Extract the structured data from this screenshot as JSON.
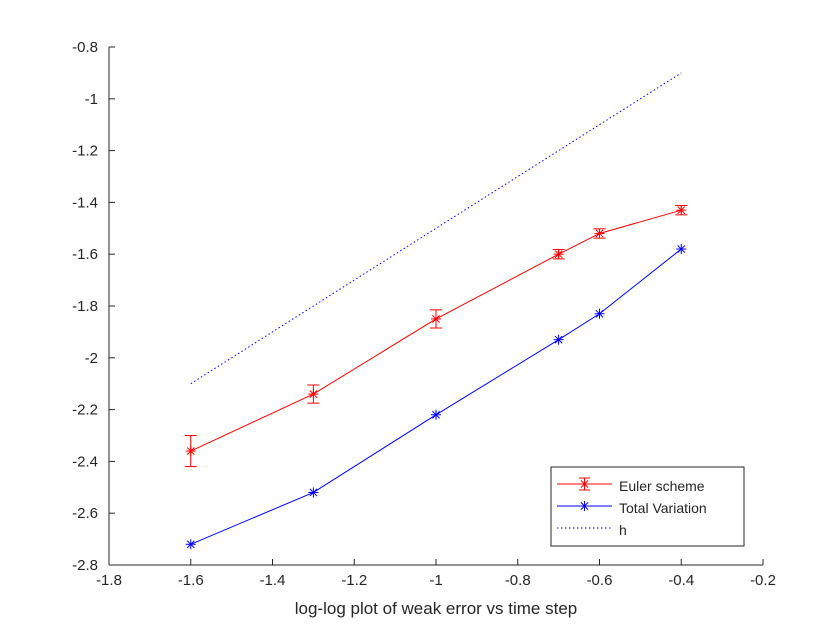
{
  "chart_data": {
    "type": "line",
    "title": "",
    "xlabel": "log-log plot of weak error vs time step",
    "ylabel": "",
    "xlim": [
      -1.8,
      -0.2
    ],
    "ylim": [
      -2.8,
      -0.8
    ],
    "xticks": [
      -1.8,
      -1.6,
      -1.4,
      -1.2,
      -1,
      -0.8,
      -0.6,
      -0.4,
      -0.2
    ],
    "yticks": [
      -2.8,
      -2.6,
      -2.4,
      -2.2,
      -2,
      -1.8,
      -1.6,
      -1.4,
      -1.2,
      -1,
      -0.8
    ],
    "grid": false,
    "legend_location": "bottom-right",
    "series": [
      {
        "name": "Euler scheme",
        "color": "#ff0000",
        "style": "solid",
        "marker": "asterisk",
        "error_bars": true,
        "x": [
          -1.6,
          -1.3,
          -1,
          -0.7,
          -0.6,
          -0.4
        ],
        "y": [
          -2.36,
          -2.14,
          -1.85,
          -1.6,
          -1.52,
          -1.43
        ],
        "err": [
          0.06,
          0.035,
          0.035,
          0.018,
          0.018,
          0.018
        ]
      },
      {
        "name": "Total Variation",
        "color": "#0000ff",
        "style": "solid",
        "marker": "asterisk",
        "error_bars": false,
        "x": [
          -1.6,
          -1.3,
          -1,
          -0.7,
          -0.6,
          -0.4
        ],
        "y": [
          -2.72,
          -2.52,
          -2.22,
          -1.93,
          -1.83,
          -1.58
        ]
      },
      {
        "name": "h",
        "color": "#0000ff",
        "style": "dotted",
        "marker": "none",
        "error_bars": false,
        "x": [
          -1.6,
          -0.4
        ],
        "y": [
          -2.1,
          -0.9
        ]
      }
    ]
  }
}
